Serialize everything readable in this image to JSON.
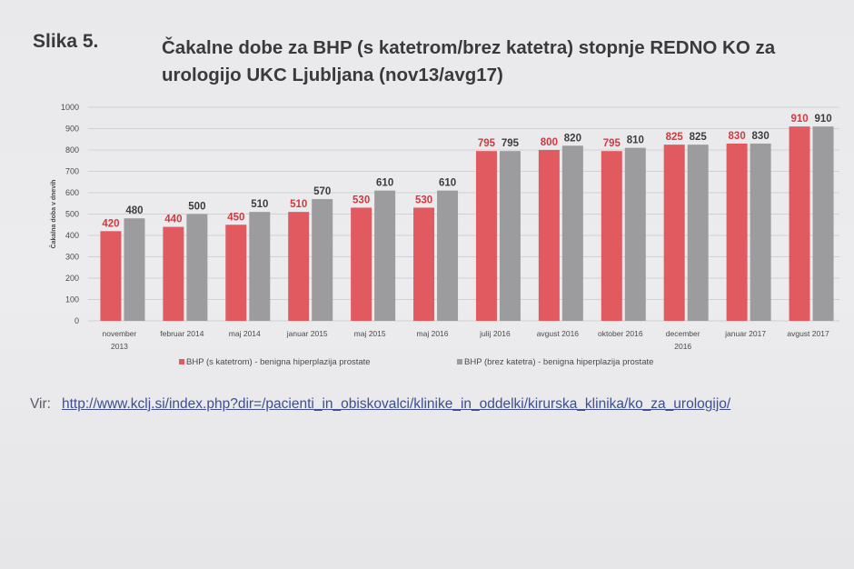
{
  "figure": {
    "label": "Slika 5.",
    "title": "Čakalne dobe za BHP (s katetrom/brez katetra) stopnje REDNO KO za urologijo UKC Ljubljana (nov13/avg17)"
  },
  "chart_data": {
    "type": "bar",
    "ylabel": "Čakalna doba v dnevih",
    "ylim": [
      0,
      1000
    ],
    "yticks": [
      0,
      100,
      200,
      300,
      400,
      500,
      600,
      700,
      800,
      900,
      1000
    ],
    "grid": true,
    "legend_position": "bottom",
    "categories": [
      [
        "november",
        "2013"
      ],
      [
        "februar 2014"
      ],
      [
        "maj 2014"
      ],
      [
        "januar 2015"
      ],
      [
        "maj 2015"
      ],
      [
        "maj 2016"
      ],
      [
        "julij 2016"
      ],
      [
        "avgust 2016"
      ],
      [
        "oktober 2016"
      ],
      [
        "december",
        "2016"
      ],
      [
        "januar 2017"
      ],
      [
        "avgust 2017"
      ]
    ],
    "series": [
      {
        "name": "BHP (s katetrom) - benigna hiperplazija prostate",
        "color": "#e05a60",
        "label_color": "#d0393f",
        "values": [
          420,
          440,
          450,
          510,
          530,
          530,
          795,
          800,
          795,
          825,
          830,
          910
        ]
      },
      {
        "name": "BHP (brez katetra) - benigna hiperplazija prostate",
        "color": "#9c9c9e",
        "label_color": "#3c3c3e",
        "values": [
          480,
          500,
          510,
          570,
          610,
          610,
          795,
          820,
          810,
          825,
          830,
          910
        ]
      }
    ]
  },
  "source": {
    "label": "Vir:",
    "url": "http://www.kclj.si/index.php?dir=/pacienti_in_obiskovalci/klinike_in_oddelki/kirurska_klinika/ko_za_urologijo/"
  }
}
